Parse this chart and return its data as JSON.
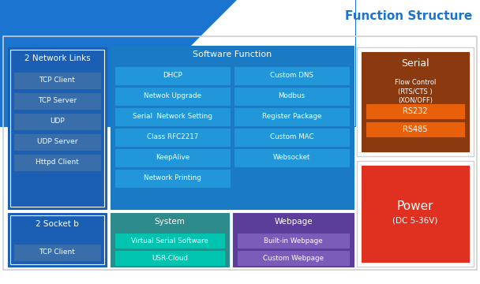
{
  "title": "Function Structure",
  "title_color": "#1B75D0",
  "bg_color": "#ffffff",
  "network_links_label": "2 Network Links",
  "network_links_items": [
    "TCP Client",
    "TCP Server",
    "UDP",
    "UDP Server",
    "Httpd Client"
  ],
  "socket_label": "2 Socket b",
  "socket_items": [
    "TCP Client"
  ],
  "left_bg": "#1B5FB5",
  "left_item_bg": "#3A6EAA",
  "triangle_color": "#1B75D0",
  "software_func_bg": "#1A7BC4",
  "software_func_title": "Software Function",
  "software_items_left": [
    "DHCP",
    "Netwok Upgrade",
    "Serial  Network Setting",
    "Class RFC2217",
    "KeepAlive",
    "Network Printing"
  ],
  "software_items_right": [
    "Custom DNS",
    "Modbus",
    "Register Package",
    "Custom MAC",
    "Websocket",
    ""
  ],
  "software_item_bg": "#2196D8",
  "system_bg": "#2E8B8B",
  "system_title": "System",
  "system_items": [
    "Virtual Serial Software",
    "USR-Cloud"
  ],
  "system_item_bg": "#00C4B0",
  "webpage_bg": "#5B3E99",
  "webpage_title": "Webpage",
  "webpage_items": [
    "Built-in Webpage",
    "Custom Webpage"
  ],
  "webpage_item_bg": "#7B5CB8",
  "serial_outer_bg": "#f0f0f0",
  "serial_bg": "#8B3A10",
  "serial_title": "Serial",
  "serial_subtitle": "Flow Control\n(RTS/CTS )\n(XON/OFF)",
  "serial_items": [
    "RS232",
    "RS485"
  ],
  "serial_item_bg": "#E8600A",
  "power_outer_bg": "#f0f0f0",
  "power_bg": "#E03020",
  "power_title": "Power",
  "power_subtitle": "(DC 5-36V)",
  "outer_border_color": "#d0d0d0",
  "white_border_color": "#ffffff"
}
